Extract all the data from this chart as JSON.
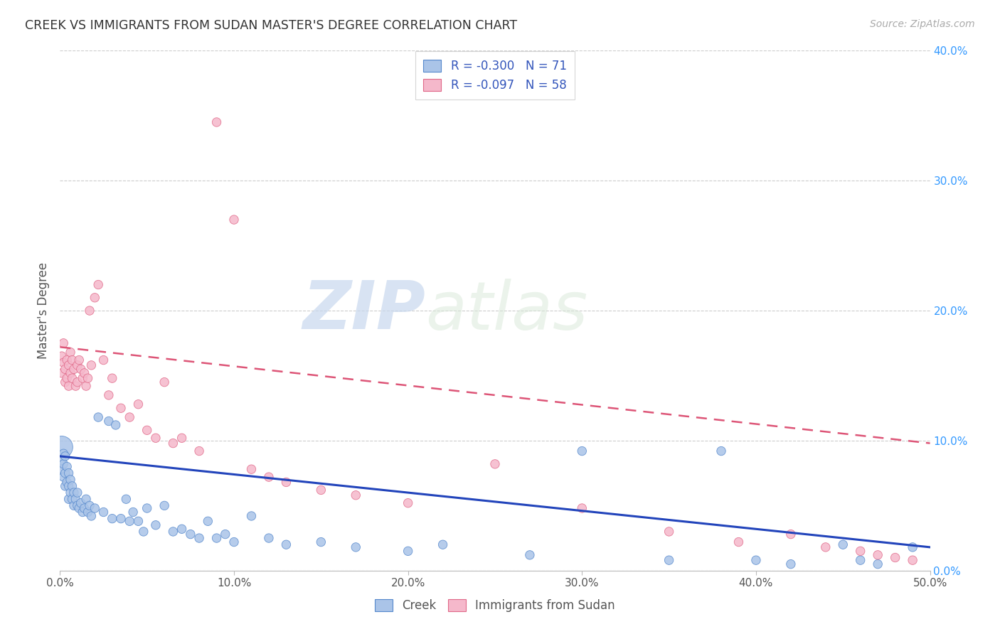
{
  "title": "CREEK VS IMMIGRANTS FROM SUDAN MASTER'S DEGREE CORRELATION CHART",
  "source": "Source: ZipAtlas.com",
  "ylabel": "Master's Degree",
  "watermark_zip": "ZIP",
  "watermark_atlas": "atlas",
  "xlim": [
    0.0,
    0.5
  ],
  "ylim": [
    0.0,
    0.4
  ],
  "yticks": [
    0.0,
    0.1,
    0.2,
    0.3,
    0.4
  ],
  "xticks": [
    0.0,
    0.1,
    0.2,
    0.3,
    0.4,
    0.5
  ],
  "ytick_labels": [
    "0.0%",
    "10.0%",
    "20.0%",
    "30.0%",
    "40.0%"
  ],
  "xtick_labels": [
    "0.0%",
    "10.0%",
    "20.0%",
    "30.0%",
    "40.0%",
    "50.0%"
  ],
  "creek_color": "#aac4e8",
  "creek_edge_color": "#5588cc",
  "sudan_color": "#f5b8cb",
  "sudan_edge_color": "#e06888",
  "creek_R": -0.3,
  "creek_N": 71,
  "sudan_R": -0.097,
  "sudan_N": 58,
  "legend_color": "#3355bb",
  "legend_N_color": "#33aa33",
  "trendline_creek_color": "#2244bb",
  "trendline_sudan_color": "#dd5577",
  "background_color": "#ffffff",
  "grid_color": "#cccccc",
  "title_color": "#333333",
  "creek_scatter_x": [
    0.001,
    0.001,
    0.001,
    0.002,
    0.002,
    0.002,
    0.003,
    0.003,
    0.003,
    0.004,
    0.004,
    0.005,
    0.005,
    0.005,
    0.006,
    0.006,
    0.007,
    0.007,
    0.008,
    0.008,
    0.009,
    0.01,
    0.01,
    0.011,
    0.012,
    0.013,
    0.014,
    0.015,
    0.016,
    0.017,
    0.018,
    0.02,
    0.022,
    0.025,
    0.028,
    0.03,
    0.032,
    0.035,
    0.038,
    0.04,
    0.042,
    0.045,
    0.048,
    0.05,
    0.055,
    0.06,
    0.065,
    0.07,
    0.075,
    0.08,
    0.085,
    0.09,
    0.095,
    0.1,
    0.11,
    0.12,
    0.13,
    0.15,
    0.17,
    0.2,
    0.22,
    0.27,
    0.3,
    0.35,
    0.38,
    0.4,
    0.42,
    0.45,
    0.46,
    0.47,
    0.49
  ],
  "creek_scatter_y": [
    0.095,
    0.085,
    0.078,
    0.09,
    0.082,
    0.072,
    0.088,
    0.075,
    0.065,
    0.08,
    0.068,
    0.075,
    0.065,
    0.055,
    0.07,
    0.06,
    0.065,
    0.055,
    0.06,
    0.05,
    0.055,
    0.05,
    0.06,
    0.048,
    0.052,
    0.045,
    0.048,
    0.055,
    0.045,
    0.05,
    0.042,
    0.048,
    0.118,
    0.045,
    0.115,
    0.04,
    0.112,
    0.04,
    0.055,
    0.038,
    0.045,
    0.038,
    0.03,
    0.048,
    0.035,
    0.05,
    0.03,
    0.032,
    0.028,
    0.025,
    0.038,
    0.025,
    0.028,
    0.022,
    0.042,
    0.025,
    0.02,
    0.022,
    0.018,
    0.015,
    0.02,
    0.012,
    0.092,
    0.008,
    0.092,
    0.008,
    0.005,
    0.02,
    0.008,
    0.005,
    0.018
  ],
  "creek_scatter_size": [
    500,
    80,
    80,
    80,
    80,
    80,
    80,
    80,
    80,
    80,
    80,
    80,
    80,
    80,
    80,
    80,
    80,
    80,
    80,
    80,
    80,
    80,
    80,
    80,
    80,
    80,
    80,
    80,
    80,
    80,
    80,
    80,
    80,
    80,
    80,
    80,
    80,
    80,
    80,
    80,
    80,
    80,
    80,
    80,
    80,
    80,
    80,
    80,
    80,
    80,
    80,
    80,
    80,
    80,
    80,
    80,
    80,
    80,
    80,
    80,
    80,
    80,
    80,
    80,
    80,
    80,
    80,
    80,
    80,
    80,
    80
  ],
  "sudan_scatter_x": [
    0.001,
    0.001,
    0.002,
    0.002,
    0.003,
    0.003,
    0.004,
    0.004,
    0.005,
    0.005,
    0.006,
    0.006,
    0.007,
    0.007,
    0.008,
    0.009,
    0.01,
    0.01,
    0.011,
    0.012,
    0.013,
    0.014,
    0.015,
    0.016,
    0.017,
    0.018,
    0.02,
    0.022,
    0.025,
    0.028,
    0.03,
    0.035,
    0.04,
    0.045,
    0.05,
    0.055,
    0.06,
    0.065,
    0.07,
    0.08,
    0.09,
    0.1,
    0.11,
    0.12,
    0.13,
    0.15,
    0.17,
    0.2,
    0.25,
    0.3,
    0.35,
    0.39,
    0.42,
    0.44,
    0.46,
    0.47,
    0.48,
    0.49
  ],
  "sudan_scatter_y": [
    0.165,
    0.152,
    0.175,
    0.16,
    0.155,
    0.145,
    0.162,
    0.148,
    0.158,
    0.142,
    0.168,
    0.152,
    0.162,
    0.148,
    0.155,
    0.142,
    0.158,
    0.145,
    0.162,
    0.155,
    0.148,
    0.152,
    0.142,
    0.148,
    0.2,
    0.158,
    0.21,
    0.22,
    0.162,
    0.135,
    0.148,
    0.125,
    0.118,
    0.128,
    0.108,
    0.102,
    0.145,
    0.098,
    0.102,
    0.092,
    0.345,
    0.27,
    0.078,
    0.072,
    0.068,
    0.062,
    0.058,
    0.052,
    0.082,
    0.048,
    0.03,
    0.022,
    0.028,
    0.018,
    0.015,
    0.012,
    0.01,
    0.008
  ],
  "sudan_scatter_size": [
    80,
    80,
    80,
    80,
    80,
    80,
    80,
    80,
    80,
    80,
    80,
    80,
    80,
    80,
    80,
    80,
    80,
    80,
    80,
    80,
    80,
    80,
    80,
    80,
    80,
    80,
    80,
    80,
    80,
    80,
    80,
    80,
    80,
    80,
    80,
    80,
    80,
    80,
    80,
    80,
    80,
    80,
    80,
    80,
    80,
    80,
    80,
    80,
    80,
    80,
    80,
    80,
    80,
    80,
    80,
    80,
    80,
    80
  ],
  "creek_trend_x0": 0.0,
  "creek_trend_y0": 0.088,
  "creek_trend_x1": 0.5,
  "creek_trend_y1": 0.018,
  "sudan_trend_x0": 0.0,
  "sudan_trend_y0": 0.172,
  "sudan_trend_x1": 0.5,
  "sudan_trend_y1": 0.098
}
